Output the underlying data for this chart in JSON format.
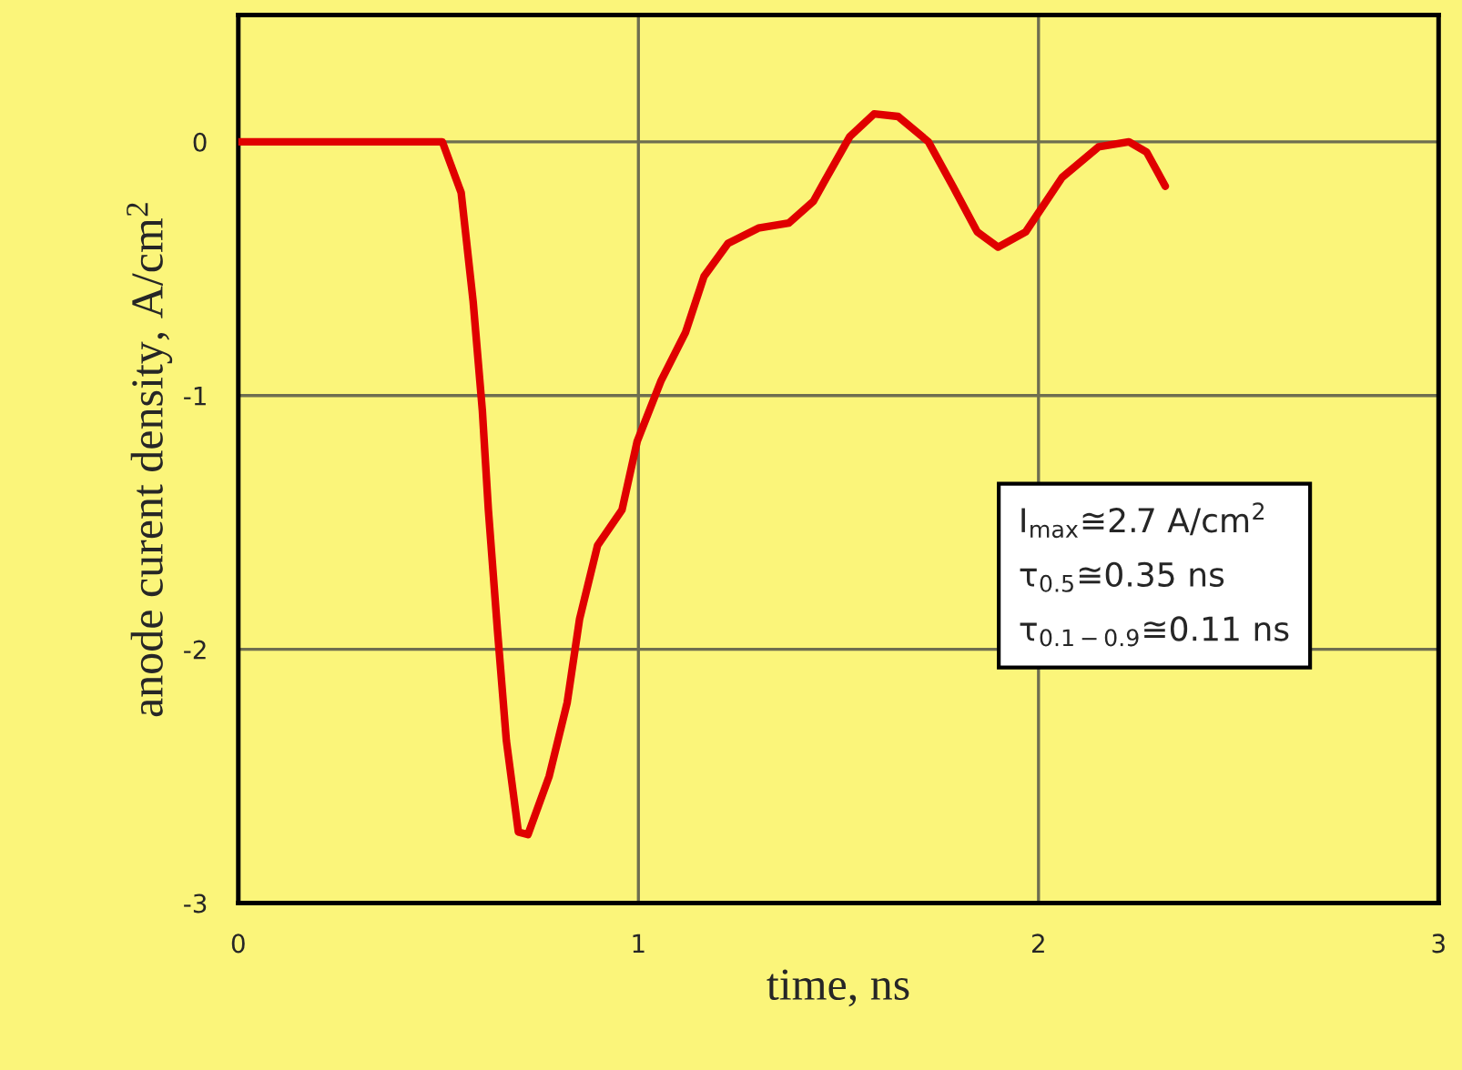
{
  "chart_data": {
    "type": "line",
    "xlabel": "time, ns",
    "ylabel": "anode curent density, A/cm$^{2}$",
    "series": [
      {
        "color": "#e00000",
        "x": [
          0,
          0.51,
          0.557,
          0.587,
          0.61,
          0.625,
          0.648,
          0.67,
          0.7,
          0.724,
          0.777,
          0.822,
          0.853,
          0.898,
          0.959,
          0.997,
          1.057,
          1.118,
          1.164,
          1.224,
          1.3,
          1.376,
          1.437,
          1.467,
          1.528,
          1.589,
          1.649,
          1.725,
          1.786,
          1.847,
          1.899,
          1.968,
          2.059,
          2.15,
          2.226,
          2.27,
          2.317
        ],
        "values": [
          0,
          0,
          -0.2,
          -0.63,
          -1.06,
          -1.45,
          -1.93,
          -2.36,
          -2.72,
          -2.73,
          -2.5,
          -2.21,
          -1.88,
          -1.59,
          -1.45,
          -1.18,
          -0.94,
          -0.75,
          -0.53,
          -0.4,
          -0.34,
          -0.32,
          -0.235,
          -0.15,
          0.02,
          0.11,
          0.1,
          0,
          -0.175,
          -0.355,
          -0.415,
          -0.355,
          -0.14,
          -0.02,
          0,
          -0.04,
          -0.175
        ]
      }
    ],
    "xlim": [
      0,
      3
    ],
    "xticks": [
      0,
      1,
      2,
      3
    ],
    "ylim": [
      -3,
      0.5
    ],
    "yticks": [
      0,
      {
        "value": -1,
        "label": "-1"
      },
      {
        "value": -2,
        "label": "-2"
      },
      {
        "value": -3,
        "label": "-3"
      }
    ],
    "grid": true,
    "marker": "none",
    "line_style": "solid",
    "annotations": [
      "I$_{max}$≅2.7 A/cm$^{2}$\nτ$_{0.5}$≅0.35 ns\nτ$_{0.1−0.9}$≅0.11 ns"
    ]
  }
}
